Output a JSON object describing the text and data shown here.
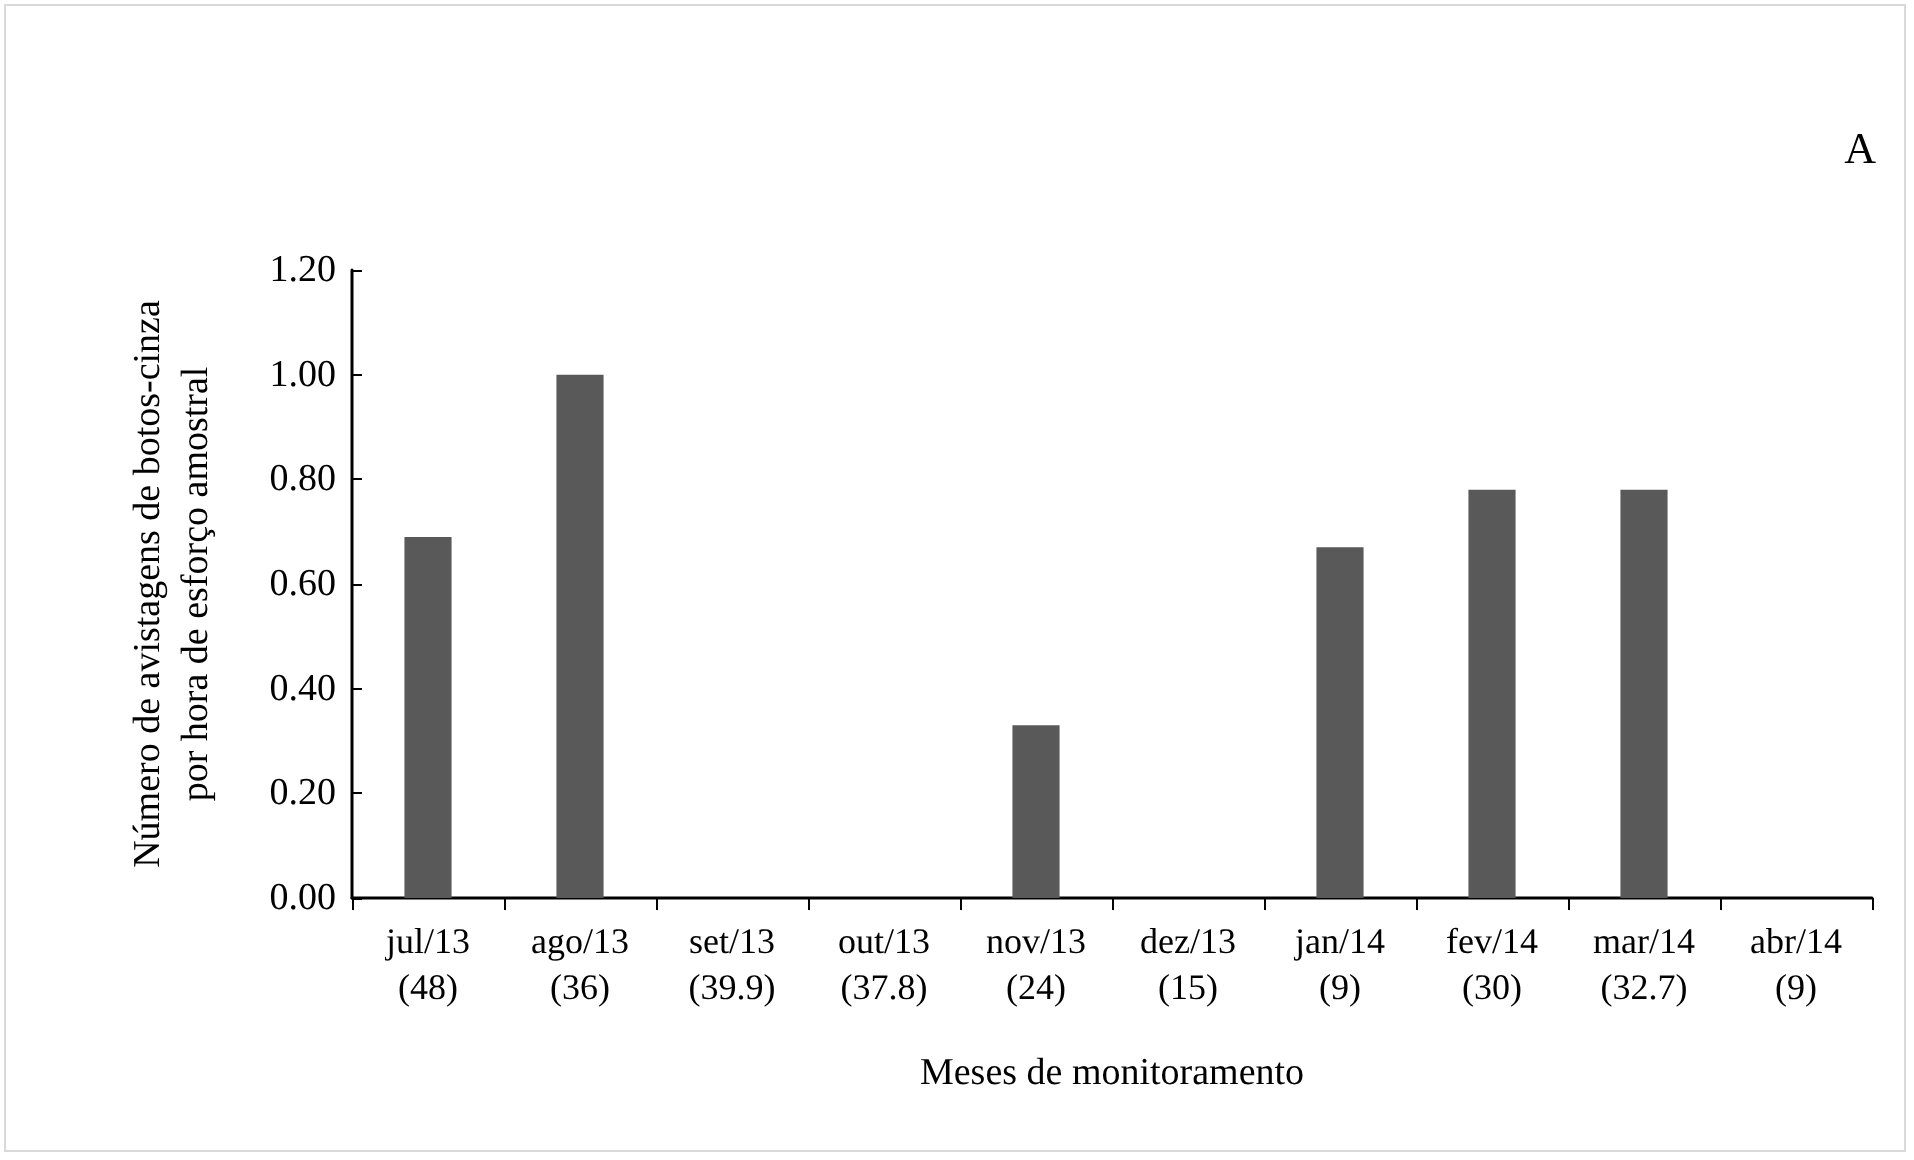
{
  "chart_data": {
    "type": "bar",
    "categories": [
      "jul/13\n(48)",
      "ago/13\n(36)",
      "set/13\n(39.9)",
      "out/13\n(37.8)",
      "nov/13\n(24)",
      "dez/13\n(15)",
      "jan/14\n(9)",
      "fev/14\n(30)",
      "mar/14\n(32.7)",
      "abr/14\n(9)"
    ],
    "values": [
      0.69,
      1.0,
      0,
      0,
      0.33,
      0,
      0.67,
      0.78,
      0.78,
      0
    ],
    "color": "#595959",
    "xlabel": "Meses de monitoramento",
    "ylabel": "Número de avistagens de botos-cinza\npor hora de esforço amostral",
    "annotations": [
      "A"
    ],
    "ylim": [
      0,
      1.2
    ],
    "yticks": [
      {
        "value": 0,
        "label": "0.00"
      },
      {
        "value": 0.2,
        "label": "0.20"
      },
      {
        "value": 0.4,
        "label": "0.40"
      },
      {
        "value": 0.6,
        "label": "0.60"
      },
      {
        "value": 0.8,
        "label": "0.80"
      },
      {
        "value": 1.0,
        "label": "1.00"
      },
      {
        "value": 1.2,
        "label": "1.20"
      }
    ],
    "grid": false
  }
}
